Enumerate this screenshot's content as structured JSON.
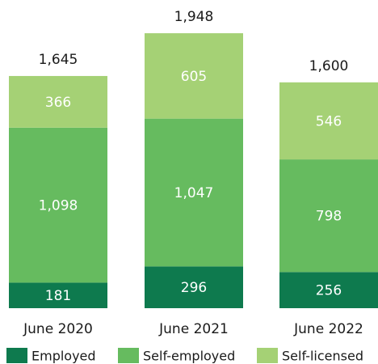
{
  "chart_data": {
    "type": "stacked_bar",
    "categories": [
      "June 2020",
      "June 2021",
      "June 2022"
    ],
    "series": [
      {
        "name": "Employed",
        "color": "#0e7a4e",
        "values": [
          181,
          296,
          256
        ]
      },
      {
        "name": "Self-employed",
        "color": "#66bb5f",
        "values": [
          1098,
          1047,
          798
        ],
        "value_labels": [
          "1,098",
          "1,047",
          "798"
        ]
      },
      {
        "name": "Self-licensed",
        "color": "#a5d175",
        "values": [
          366,
          605,
          546
        ]
      }
    ],
    "totals": [
      1645,
      1948,
      1600
    ],
    "total_labels": [
      "1,645",
      "1,948",
      "1,600"
    ],
    "ylim": [
      0,
      2000
    ]
  }
}
